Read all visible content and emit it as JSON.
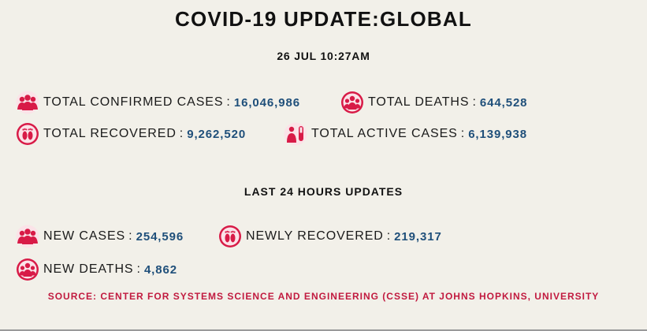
{
  "header": {
    "title": "COVID-19 UPDATE:GLOBAL",
    "timestamp": "26 JUL 10:27AM"
  },
  "totals": {
    "confirmed": {
      "label": "TOTAL CONFIRMED CASES",
      "value": "16,046,986",
      "icon": "people-group-icon"
    },
    "deaths": {
      "label": "TOTAL DEATHS",
      "value": "644,528",
      "icon": "deaths-group-icon"
    },
    "recovered": {
      "label": "TOTAL RECOVERED",
      "value": "9,262,520",
      "icon": "footprints-icon"
    },
    "active": {
      "label": "TOTAL ACTIVE CASES",
      "value": "6,139,938",
      "icon": "test-tube-patient-icon"
    }
  },
  "last24": {
    "title": "LAST 24 HOURS UPDATES",
    "new_cases": {
      "label": "NEW CASES",
      "value": "254,596",
      "icon": "people-group-icon"
    },
    "newly_recovered": {
      "label": "NEWLY RECOVERED",
      "value": "219,317",
      "icon": "footprints-icon"
    },
    "new_deaths": {
      "label": "NEW DEATHS",
      "value": "4,862",
      "icon": "deaths-group-icon"
    }
  },
  "separator": ":",
  "source": "SOURCE: CENTER FOR SYSTEMS SCIENCE AND ENGINEERING (CSSE) AT JOHNS HOPKINS, UNIVERSITY",
  "colors": {
    "background": "#f2f0e9",
    "value": "#1f4f7a",
    "accent": "#c11a3f",
    "icon_red": "#d81b47"
  }
}
